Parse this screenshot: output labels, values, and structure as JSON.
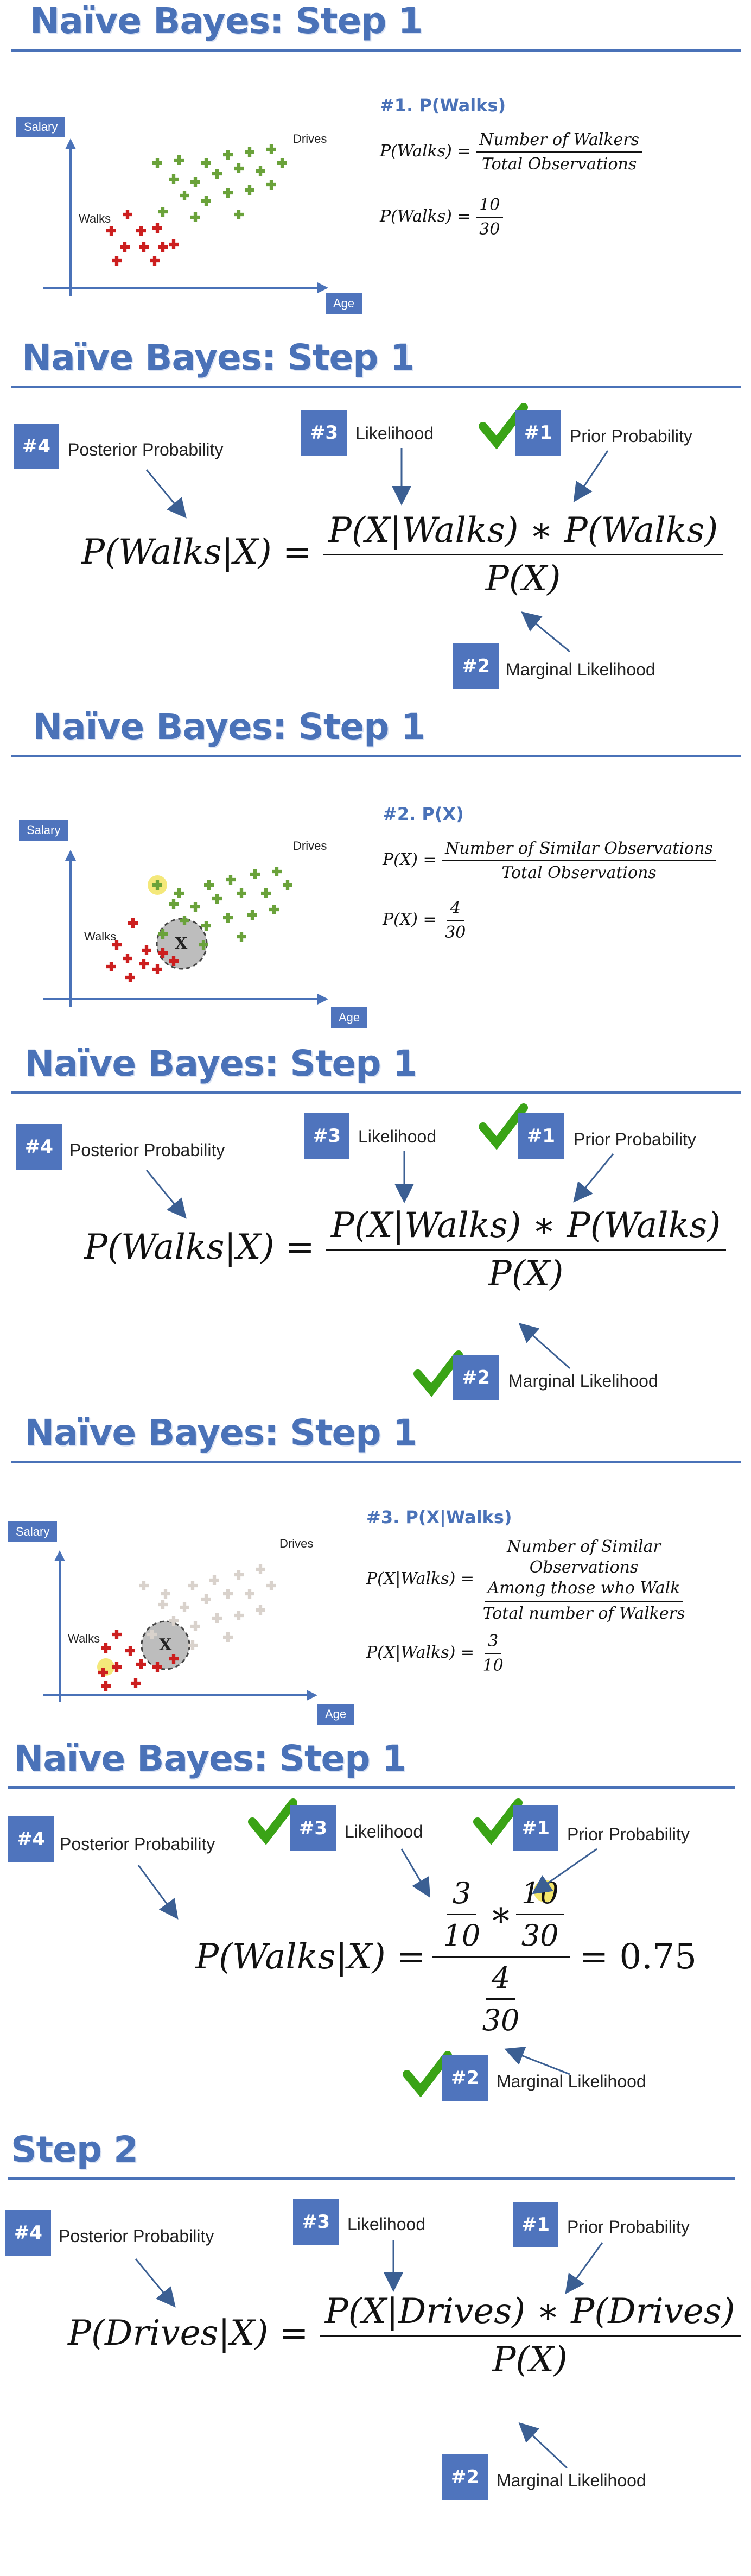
{
  "panels": [
    {
      "title": "Naïve Bayes: Step 1",
      "subhead": "#1. P(Walks)",
      "axis_y": "Salary",
      "axis_x": "Age",
      "walks": "Walks",
      "drives": "Drives",
      "eq1_lhs": "P(Walks) =",
      "eq1_num": "Number of Walkers",
      "eq1_den": "Total Observations",
      "eq2_lhs": "P(Walks) =",
      "eq2_num": "10",
      "eq2_den": "30"
    },
    {
      "title": "Naïve Bayes: Step 1",
      "b4": "#4",
      "posterior": "Posterior Probability",
      "b3": "#3",
      "likelihood": "Likelihood",
      "b1": "#1",
      "prior": "Prior Probability",
      "b2": "#2",
      "marginal": "Marginal Likelihood",
      "lhs": "P(Walks|X) =",
      "num": "P(X|Walks) ∗ P(Walks)",
      "den": "P(X)"
    },
    {
      "title": "Naïve Bayes: Step 1",
      "subhead": "#2. P(X)",
      "axis_y": "Salary",
      "axis_x": "Age",
      "walks": "Walks",
      "drives": "Drives",
      "x": "X",
      "eq1_lhs": "P(X) =",
      "eq1_num": "Number of Similar Observations",
      "eq1_den": "Total Observations",
      "eq2_lhs": "P(X) =",
      "eq2_num": "4",
      "eq2_den": "30"
    },
    {
      "title": "Naïve Bayes: Step 1",
      "b4": "#4",
      "posterior": "Posterior Probability",
      "b3": "#3",
      "likelihood": "Likelihood",
      "b1": "#1",
      "prior": "Prior Probability",
      "b2": "#2",
      "marginal": "Marginal Likelihood",
      "lhs": "P(Walks|X) =",
      "num": "P(X|Walks) ∗ P(Walks)",
      "den": "P(X)"
    },
    {
      "title": "Naïve Bayes: Step 1",
      "subhead": "#3. P(X|Walks)",
      "axis_y": "Salary",
      "axis_x": "Age",
      "walks": "Walks",
      "drives": "Drives",
      "x": "X",
      "eq1_lhs": "P(X|Walks) =",
      "eq1_num_1": "Number of Similar",
      "eq1_num_2": "Observations",
      "eq1_num_3": "Among those who Walk",
      "eq1_den": "Total number of Walkers",
      "eq2_lhs": "P(X|Walks) =",
      "eq2_num": "3",
      "eq2_den": "10"
    },
    {
      "title": "Naïve Bayes: Step 1",
      "b4": "#4",
      "posterior": "Posterior Probability",
      "b3": "#3",
      "likelihood": "Likelihood",
      "b1": "#1",
      "prior": "Prior Probability",
      "b2": "#2",
      "marginal": "Marginal Likelihood",
      "lhs": "P(Walks|X) =",
      "f1n": "3",
      "f1d": "10",
      "star": "∗",
      "f2n": "10",
      "f2d": "30",
      "f3n": "4",
      "f3d": "30",
      "result": "= 0.75"
    },
    {
      "title": "Step 2",
      "b4": "#4",
      "posterior": "Posterior Probability",
      "b3": "#3",
      "likelihood": "Likelihood",
      "b1": "#1",
      "prior": "Prior Probability",
      "b2": "#2",
      "marginal": "Marginal Likelihood",
      "lhs": "P(Drives|X) =",
      "num": "P(X|Drives) ∗ P(Drives)",
      "den": "P(X)"
    }
  ],
  "colors": {
    "accent": "#4a72b8",
    "badge": "#4f74bd",
    "walks": "#cc1f1f",
    "drives": "#6aa23a",
    "check": "#3aa316",
    "highlight": "#f3e66b"
  }
}
